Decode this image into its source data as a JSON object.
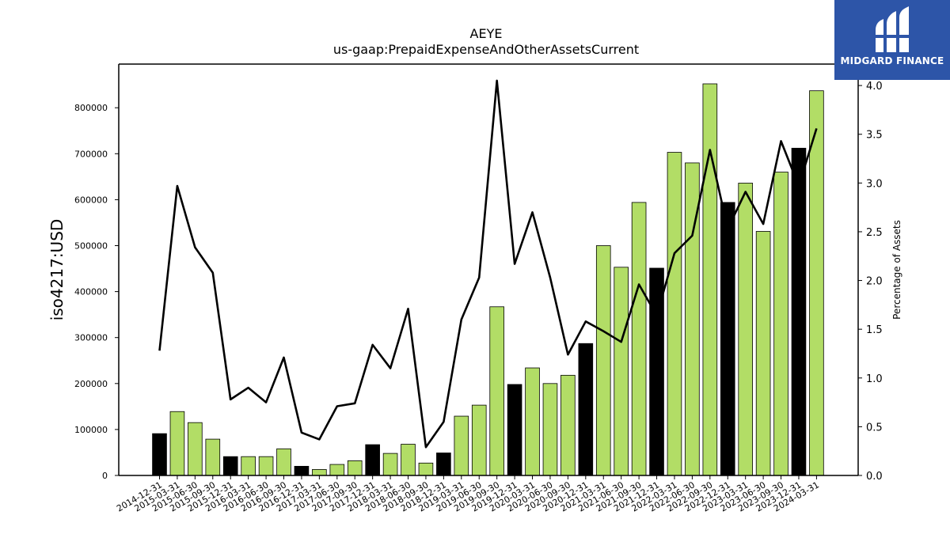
{
  "brand": {
    "name": "MIDGARD FINANCE",
    "bg_color": "#2d55a8"
  },
  "chart_data": {
    "type": "bar",
    "title": "AEYE",
    "subtitle": "us-gaap:PrepaidExpenseAndOtherAssetsCurrent",
    "ylabel": "iso4217:USD",
    "y2label": "Percentage of Assets",
    "ylim": [
      0,
      895000
    ],
    "y2lim": [
      0,
      4.22
    ],
    "yticks": [
      0,
      100000,
      200000,
      300000,
      400000,
      500000,
      600000,
      700000,
      800000
    ],
    "y2ticks": [
      "0.0",
      "0.5",
      "1.0",
      "1.5",
      "2.0",
      "2.5",
      "3.0",
      "3.5",
      "4.0"
    ],
    "grid": false,
    "colors": {
      "annual": "#000000",
      "quarterly": "#b2dd66",
      "line": "#000000"
    },
    "categories": [
      "2014-12-31",
      "2015-03-31",
      "2015-06-30",
      "2015-09-30",
      "2015-12-31",
      "2016-03-31",
      "2016-06-30",
      "2016-09-30",
      "2016-12-31",
      "2017-03-31",
      "2017-06-30",
      "2017-09-30",
      "2017-12-31",
      "2018-03-31",
      "2018-06-30",
      "2018-09-30",
      "2018-12-31",
      "2019-03-31",
      "2019-06-30",
      "2019-09-30",
      "2019-12-31",
      "2020-03-31",
      "2020-06-30",
      "2020-09-30",
      "2020-12-31",
      "2021-03-31",
      "2021-06-30",
      "2021-09-30",
      "2021-12-31",
      "2022-03-31",
      "2022-06-30",
      "2022-09-30",
      "2022-12-31",
      "2023-03-31",
      "2023-06-30",
      "2023-09-30",
      "2023-12-31",
      "2024-03-31"
    ],
    "series": [
      {
        "type": "bar",
        "values": [
          91000,
          139000,
          115000,
          79000,
          41000,
          41000,
          41000,
          58000,
          20000,
          13000,
          24000,
          32000,
          67000,
          48000,
          68000,
          27000,
          49000,
          129000,
          153000,
          367000,
          198000,
          234000,
          200000,
          218000,
          287000,
          500000,
          453000,
          594000,
          451000,
          703000,
          680000,
          852000,
          594000,
          636000,
          531000,
          660000,
          712000,
          837000
        ],
        "annual": [
          true,
          false,
          false,
          false,
          true,
          false,
          false,
          false,
          true,
          false,
          false,
          false,
          true,
          false,
          false,
          false,
          true,
          false,
          false,
          false,
          true,
          false,
          false,
          false,
          true,
          false,
          false,
          false,
          true,
          false,
          false,
          false,
          true,
          false,
          false,
          false,
          true,
          false
        ]
      },
      {
        "type": "line",
        "axis": "right",
        "values": [
          1.28,
          2.97,
          2.34,
          2.08,
          0.78,
          0.9,
          0.75,
          1.21,
          0.44,
          0.37,
          0.71,
          0.74,
          1.34,
          1.1,
          1.71,
          0.29,
          0.55,
          1.6,
          2.03,
          4.05,
          2.17,
          2.7,
          2.03,
          1.24,
          1.58,
          1.48,
          1.37,
          1.96,
          1.64,
          2.28,
          2.46,
          3.34,
          2.53,
          2.91,
          2.58,
          3.43,
          2.97,
          3.56
        ]
      }
    ]
  }
}
